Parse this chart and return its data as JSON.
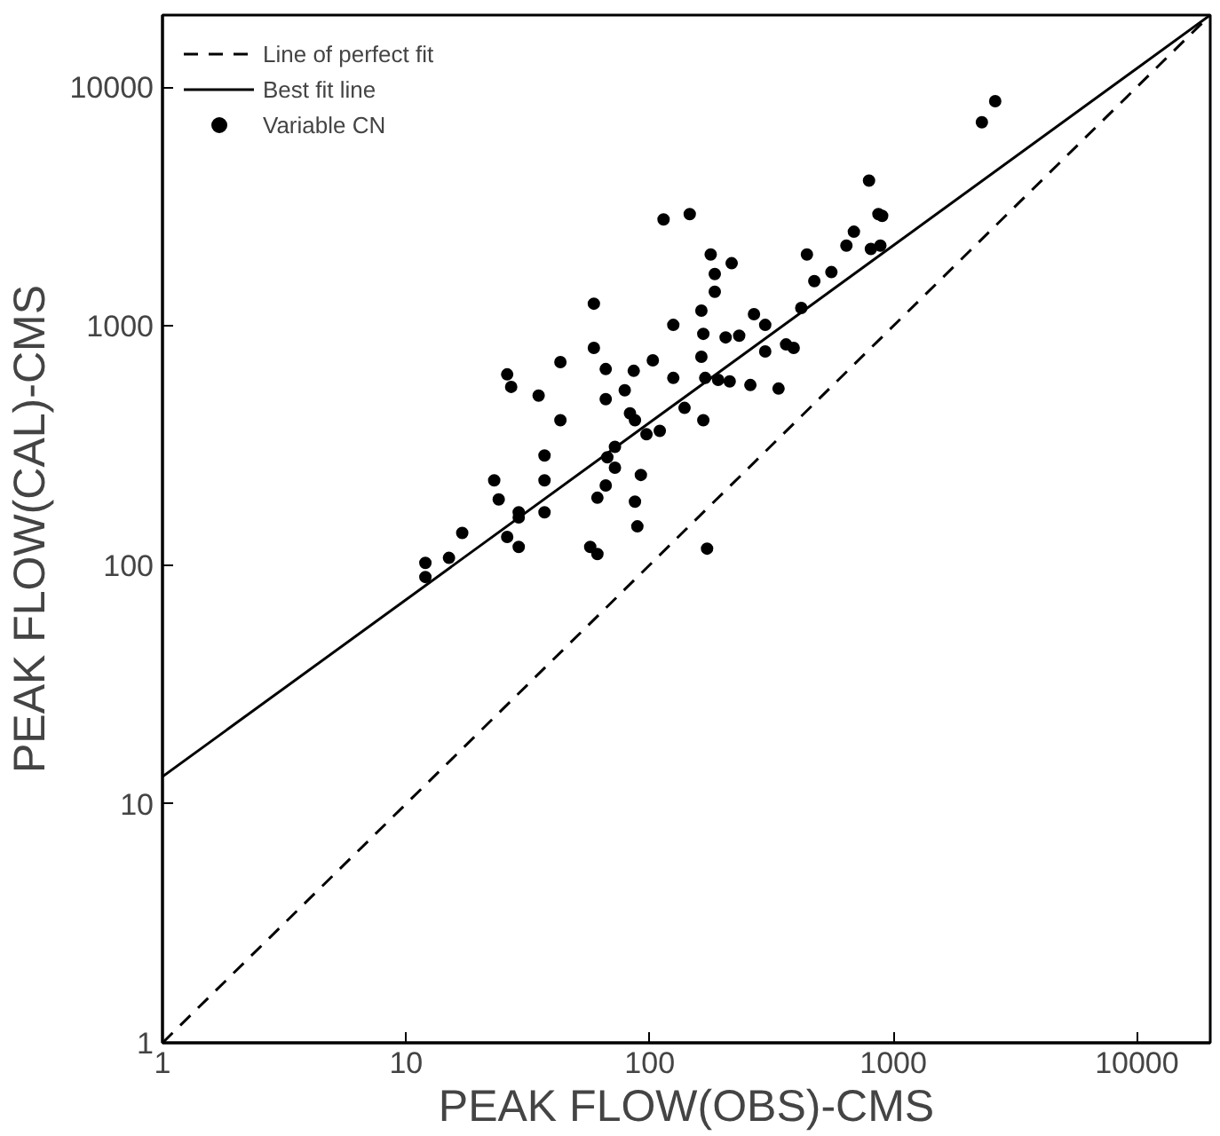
{
  "chart_data": {
    "type": "scatter",
    "xlabel": "PEAK FLOW(OBS)-CMS",
    "ylabel": "PEAK FLOW(CAL)-CMS",
    "log": "xy",
    "grid": false,
    "legend": "top left",
    "xlim": [
      1,
      20000
    ],
    "ylim": [
      1,
      20000
    ],
    "xticks": [
      1,
      10,
      100,
      1000,
      10000
    ],
    "yticks": [
      1,
      10,
      100,
      1000,
      10000
    ],
    "series": [
      {
        "name": "Line of perfect fit",
        "type": "line",
        "line_style": "dashed",
        "color": "#000000",
        "x": [
          1,
          20000
        ],
        "values": [
          1,
          20000
        ]
      },
      {
        "name": "Best fit line",
        "type": "line",
        "line_style": "solid",
        "color": "#000000",
        "x": [
          1,
          20000
        ],
        "values": [
          13,
          20000
        ]
      },
      {
        "name": "Variable CN",
        "marker": "circle",
        "color": "#000000",
        "x": [
          114,
          146,
          178,
          217,
          185,
          185,
          442,
          59,
          163,
          125,
          166,
          268,
          298,
          419,
          205,
          233,
          298,
          363,
          390,
          163,
          26,
          27,
          43,
          59,
          66,
          86,
          103,
          79,
          66,
          125,
          169,
          191,
          213,
          259,
          338,
          139,
          166,
          83,
          87,
          97,
          110,
          35,
          43,
          37,
          72,
          67,
          72,
          92,
          66,
          61,
          87,
          89,
          23,
          24,
          29,
          29,
          37,
          37,
          26,
          29,
          57,
          61,
          172,
          17,
          15,
          12,
          12,
          2310,
          2620,
          795,
          869,
          900,
          689,
          642,
          809,
          885,
          557,
          474
        ],
        "values": [
          2790,
          2940,
          1990,
          1830,
          1650,
          1390,
          1990,
          1240,
          1160,
          1010,
          927,
          1120,
          1010,
          1190,
          896,
          911,
          782,
          837,
          809,
          743,
          627,
          556,
          706,
          809,
          660,
          649,
          718,
          538,
          494,
          606,
          606,
          595,
          586,
          566,
          547,
          454,
          403,
          431,
          403,
          352,
          364,
          511,
          403,
          287,
          312,
          282,
          255,
          238,
          215,
          191,
          184,
          145,
          226,
          188,
          166,
          158,
          166,
          226,
          131,
          119,
          119,
          111,
          117,
          136,
          107,
          102,
          89,
          7120,
          8730,
          4060,
          2940,
          2890,
          2480,
          2170,
          2100,
          2170,
          1680,
          1540
        ]
      }
    ]
  }
}
